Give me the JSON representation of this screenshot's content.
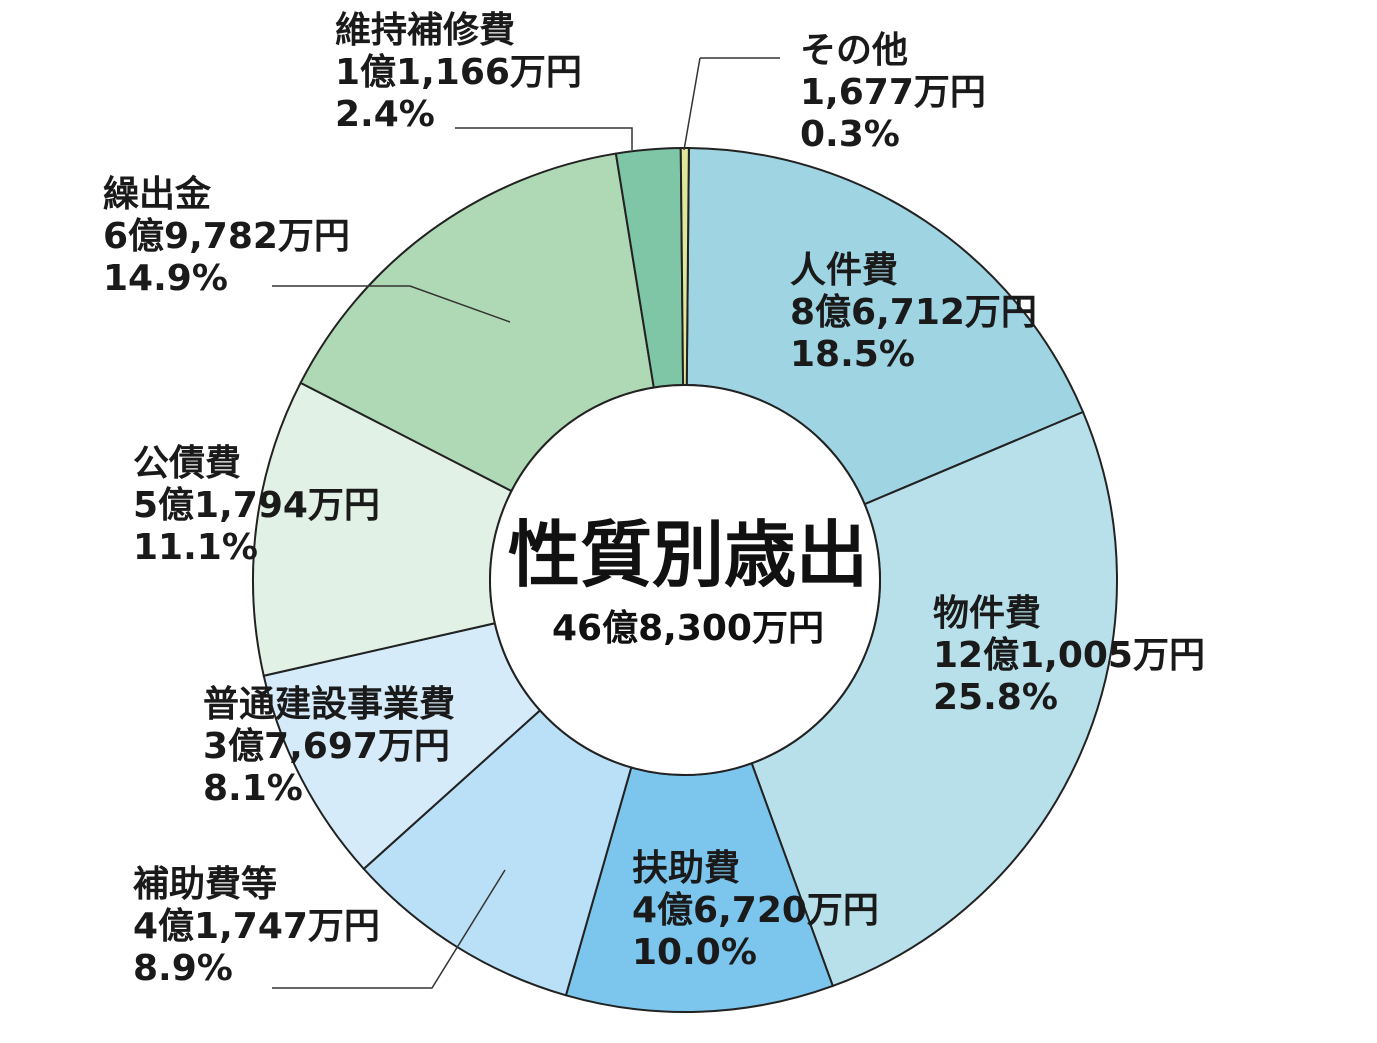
{
  "chart_data": {
    "type": "pie",
    "title": "性質別歳出",
    "total": "46億8,300万円",
    "donut": true,
    "categories": [
      "人件費",
      "物件費",
      "扶助費",
      "補助費等",
      "普通建設事業費",
      "公債費",
      "繰出金",
      "維持補修費",
      "その他"
    ],
    "values": [
      18.5,
      25.8,
      10.0,
      8.9,
      8.1,
      11.1,
      14.9,
      2.4,
      0.3
    ],
    "slices": [
      {
        "label": "人件費",
        "amount": "8億6,712万円",
        "percent": "18.5%",
        "value": 18.5,
        "color": "#9fd4e3"
      },
      {
        "label": "物件費",
        "amount": "12億1,005万円",
        "percent": "25.8%",
        "value": 25.8,
        "color": "#b8e0ea"
      },
      {
        "label": "扶助費",
        "amount": "4億6,720万円",
        "percent": "10.0%",
        "value": 10.0,
        "color": "#7cc6ee"
      },
      {
        "label": "補助費等",
        "amount": "4億1,747万円",
        "percent": "8.9%",
        "value": 8.9,
        "color": "#b9e0f6"
      },
      {
        "label": "普通建設事業費",
        "amount": "3億7,697万円",
        "percent": "8.1%",
        "value": 8.1,
        "color": "#d5ebfa"
      },
      {
        "label": "公債費",
        "amount": "5億1,794万円",
        "percent": "11.1%",
        "value": 11.1,
        "color": "#e2f1e5"
      },
      {
        "label": "繰出金",
        "amount": "6億9,782万円",
        "percent": "14.9%",
        "value": 14.9,
        "color": "#afd8b4"
      },
      {
        "label": "維持補修費",
        "amount": "1億1,166万円",
        "percent": "2.4%",
        "value": 2.4,
        "color": "#7fc6a6"
      },
      {
        "label": "その他",
        "amount": "1,677万円",
        "percent": "0.3%",
        "value": 0.3,
        "color": "#dfe89a"
      }
    ]
  }
}
